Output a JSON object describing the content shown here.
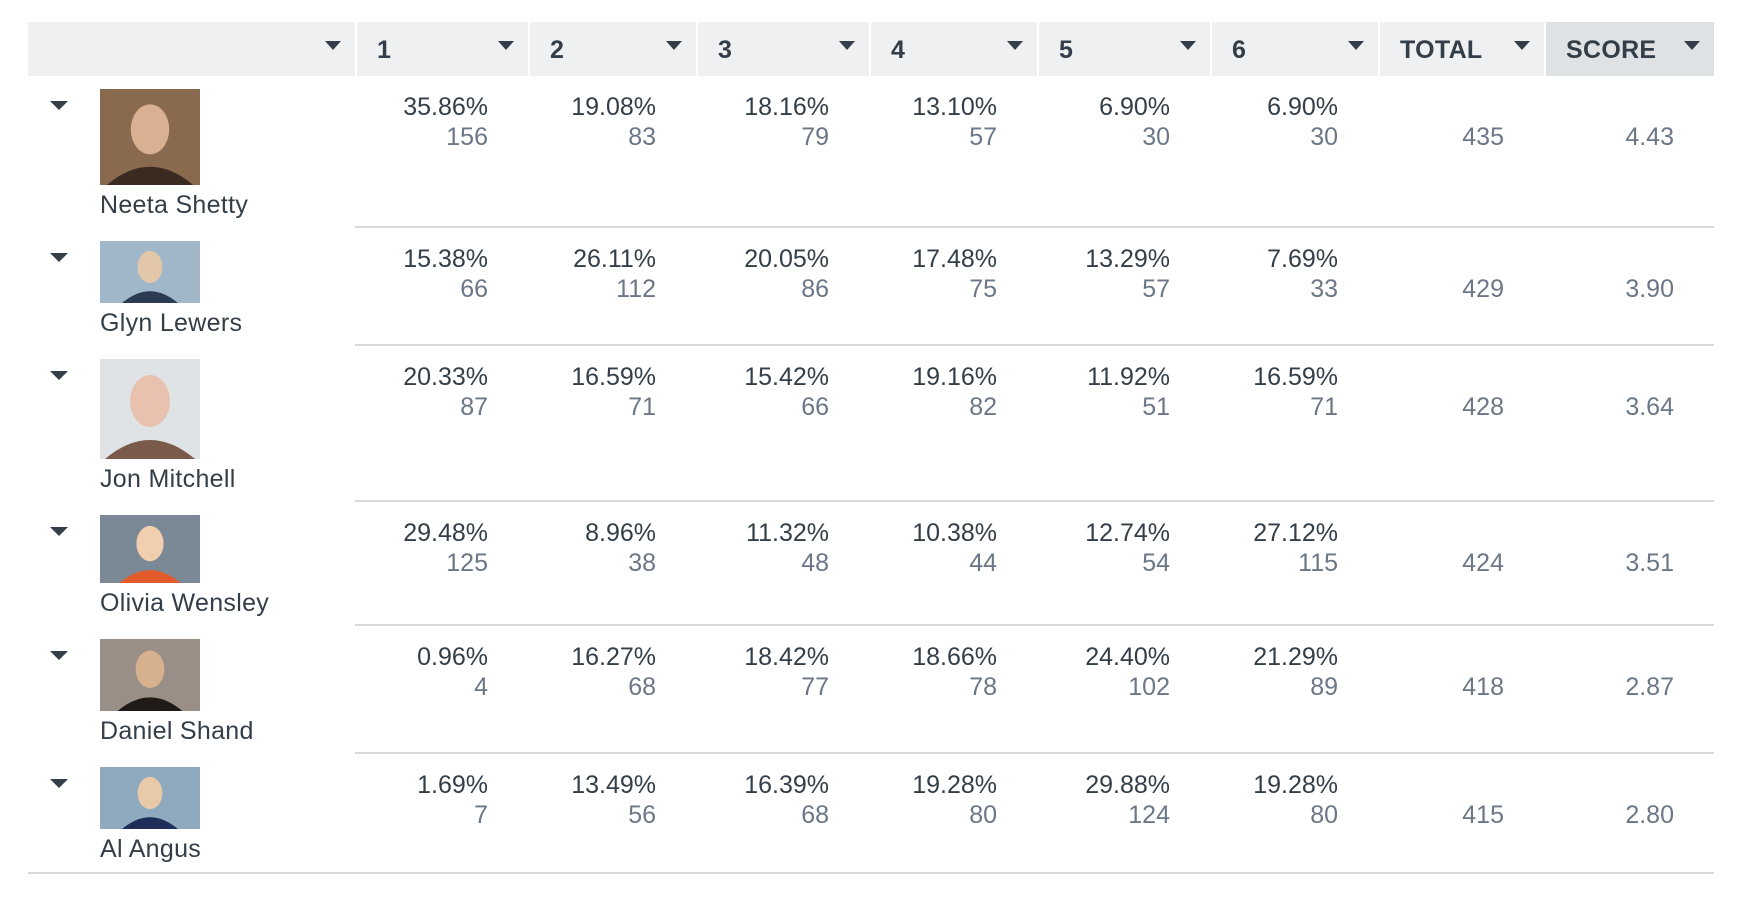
{
  "header": {
    "columns": [
      {
        "label": ""
      },
      {
        "label": "1"
      },
      {
        "label": "2"
      },
      {
        "label": "3"
      },
      {
        "label": "4"
      },
      {
        "label": "5"
      },
      {
        "label": "6"
      },
      {
        "label": "TOTAL"
      },
      {
        "label": "SCORE"
      }
    ],
    "sorted_column": "SCORE"
  },
  "rows": [
    {
      "name": "Neeta Shetty",
      "photo_icon": "person-photo-icon",
      "cells": [
        {
          "pct": "35.86%",
          "count": "156"
        },
        {
          "pct": "19.08%",
          "count": "83"
        },
        {
          "pct": "18.16%",
          "count": "79"
        },
        {
          "pct": "13.10%",
          "count": "57"
        },
        {
          "pct": "6.90%",
          "count": "30"
        },
        {
          "pct": "6.90%",
          "count": "30"
        }
      ],
      "total": "435",
      "score": "4.43"
    },
    {
      "name": "Glyn Lewers",
      "photo_icon": "person-photo-icon",
      "cells": [
        {
          "pct": "15.38%",
          "count": "66"
        },
        {
          "pct": "26.11%",
          "count": "112"
        },
        {
          "pct": "20.05%",
          "count": "86"
        },
        {
          "pct": "17.48%",
          "count": "75"
        },
        {
          "pct": "13.29%",
          "count": "57"
        },
        {
          "pct": "7.69%",
          "count": "33"
        }
      ],
      "total": "429",
      "score": "3.90"
    },
    {
      "name": "Jon Mitchell",
      "photo_icon": "person-photo-icon",
      "cells": [
        {
          "pct": "20.33%",
          "count": "87"
        },
        {
          "pct": "16.59%",
          "count": "71"
        },
        {
          "pct": "15.42%",
          "count": "66"
        },
        {
          "pct": "19.16%",
          "count": "82"
        },
        {
          "pct": "11.92%",
          "count": "51"
        },
        {
          "pct": "16.59%",
          "count": "71"
        }
      ],
      "total": "428",
      "score": "3.64"
    },
    {
      "name": "Olivia Wensley",
      "photo_icon": "person-photo-icon",
      "cells": [
        {
          "pct": "29.48%",
          "count": "125"
        },
        {
          "pct": "8.96%",
          "count": "38"
        },
        {
          "pct": "11.32%",
          "count": "48"
        },
        {
          "pct": "10.38%",
          "count": "44"
        },
        {
          "pct": "12.74%",
          "count": "54"
        },
        {
          "pct": "27.12%",
          "count": "115"
        }
      ],
      "total": "424",
      "score": "3.51"
    },
    {
      "name": "Daniel Shand",
      "photo_icon": "person-photo-icon",
      "cells": [
        {
          "pct": "0.96%",
          "count": "4"
        },
        {
          "pct": "16.27%",
          "count": "68"
        },
        {
          "pct": "18.42%",
          "count": "77"
        },
        {
          "pct": "18.66%",
          "count": "78"
        },
        {
          "pct": "24.40%",
          "count": "102"
        },
        {
          "pct": "21.29%",
          "count": "89"
        }
      ],
      "total": "418",
      "score": "2.87"
    },
    {
      "name": "Al Angus",
      "photo_icon": "person-photo-icon",
      "cells": [
        {
          "pct": "1.69%",
          "count": "7"
        },
        {
          "pct": "13.49%",
          "count": "56"
        },
        {
          "pct": "16.39%",
          "count": "68"
        },
        {
          "pct": "19.28%",
          "count": "80"
        },
        {
          "pct": "29.88%",
          "count": "124"
        },
        {
          "pct": "19.28%",
          "count": "80"
        }
      ],
      "total": "415",
      "score": "2.80"
    }
  ],
  "colors": {
    "header_bg": "#eef0f1",
    "sorted_header_bg": "#dfe2e4",
    "text": "#333e48",
    "muted_text": "#6b7787",
    "divider": "#d5d9dc"
  }
}
